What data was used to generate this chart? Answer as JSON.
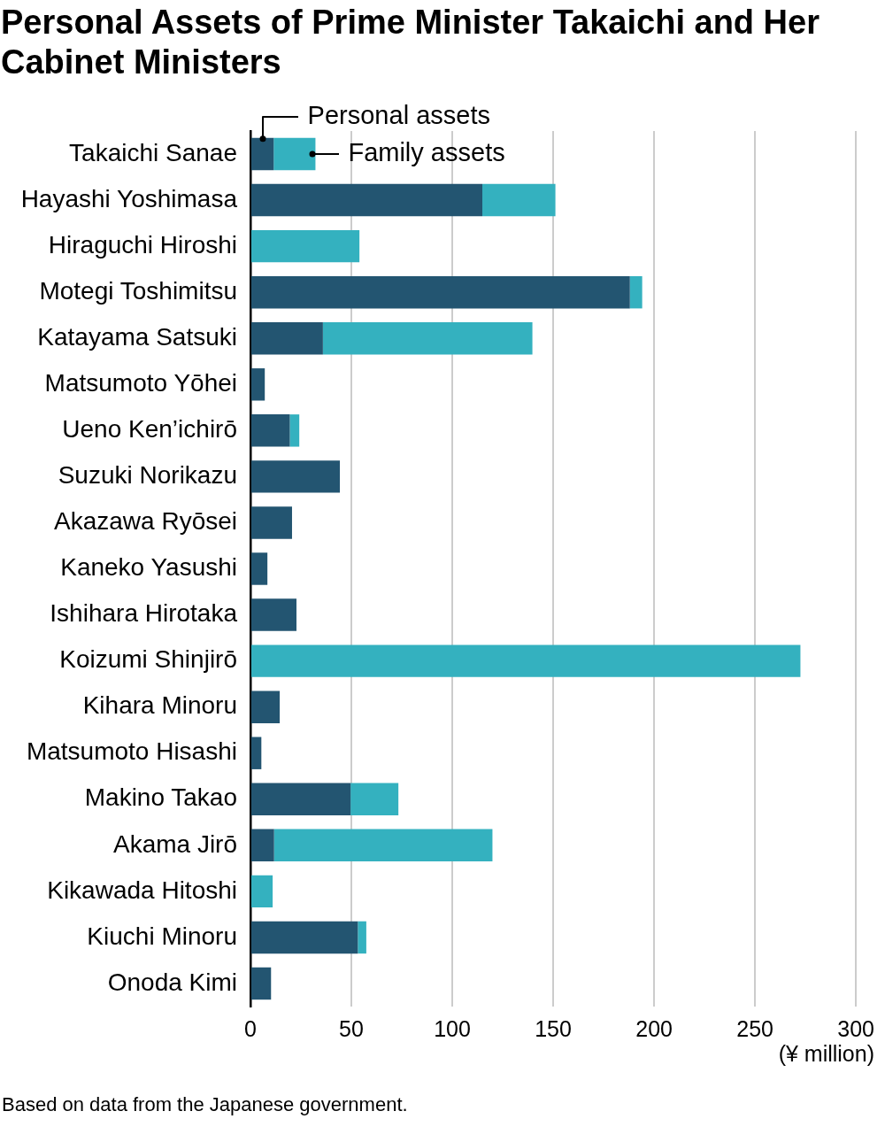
{
  "chart_data": {
    "type": "bar",
    "orientation": "horizontal",
    "stacked": true,
    "title": "Personal Assets of Prime Minister Takaichi and Her Cabinet Ministers",
    "xlabel": "(¥ million)",
    "categories": [
      "Takaichi Sanae",
      "Hayashi Yoshimasa",
      "Hiraguchi Hiroshi",
      "Motegi Toshimitsu",
      "Katayama Satsuki",
      "Matsumoto Yōhei",
      "Ueno Ken’ichirō",
      "Suzuki Norikazu",
      "Akazawa Ryōsei",
      "Kaneko Yasushi",
      "Ishihara Hirotaka",
      "Koizumi Shinjirō",
      "Kihara Minoru",
      "Matsumoto Hisashi",
      "Makino Takao",
      "Akama Jirō",
      "Kikawada Hitoshi",
      "Kiuchi Minoru",
      "Onoda Kimi"
    ],
    "series": [
      {
        "name": "Personal assets",
        "color": "#235571",
        "values": [
          11.5,
          114.9,
          null,
          188.0,
          35.9,
          7.1,
          19.5,
          44.3,
          20.6,
          8.4,
          22.8,
          null,
          14.5,
          5.4,
          49.6,
          11.7,
          null,
          53.2,
          10.2
        ]
      },
      {
        "name": "Family assets",
        "color": "#34b1bf",
        "values": [
          20.7,
          36.2,
          54.0,
          6.1,
          103.8,
          null,
          4.7,
          null,
          null,
          null,
          null,
          272.5,
          null,
          null,
          23.7,
          108.2,
          11.0,
          4.2,
          null
        ]
      }
    ],
    "xlim": [
      0,
      300
    ],
    "xticks": [
      0,
      50,
      100,
      150,
      200,
      250,
      300
    ],
    "grid": "x",
    "legend": false,
    "annotations": [
      "Based on data from the Japanese government."
    ]
  }
}
